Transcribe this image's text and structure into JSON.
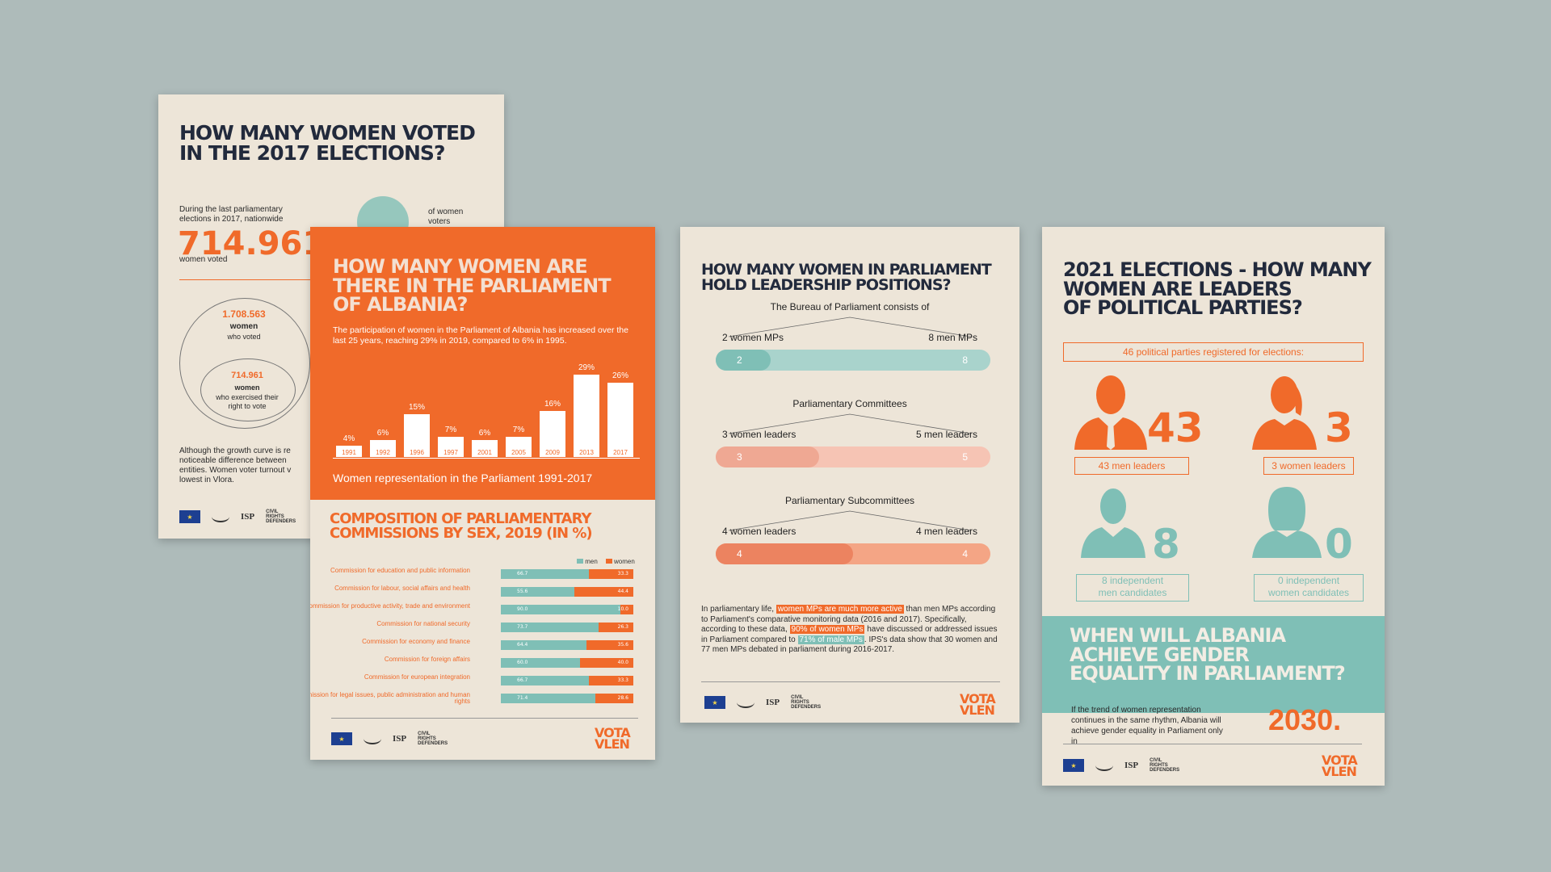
{
  "colors": {
    "background": "#aebbba",
    "paper": "#ede5d8",
    "orange": "#f06a2a",
    "teal": "#7fbfb6",
    "navy": "#222a3c"
  },
  "footer": {
    "logo_eu": "★",
    "logo_isp": "ISP",
    "logo_crd": "CIVIL RIGHTS DEFENDERS",
    "logo_vota_line1": "VOTA",
    "logo_vota_line2": "VLEN"
  },
  "poster1": {
    "title_line1": "HOW MANY WOMEN VOTED",
    "title_line2": "IN THE 2017 ELECTIONS?",
    "intro": "During the last parliamentary elections in 2017, nationwide",
    "big_number": "714.961",
    "big_number_caption": "women voted",
    "circle_caption": "of women voters",
    "outer_number": "1.708.563",
    "outer_label": "women",
    "outer_sub": "who voted",
    "inner_number": "714.961",
    "inner_label": "women",
    "inner_sub": "who exercised their right to vote",
    "body_line1": "Although the growth curve is re",
    "body_line2": "noticeable difference between",
    "body_line3": "entities. Women voter turnout v",
    "body_line4": "lowest in Vlora."
  },
  "poster2": {
    "title_line1": "HOW MANY WOMEN ARE",
    "title_line2": "THERE IN THE PARLIAMENT",
    "title_line3": "OF ALBANIA?",
    "intro": "The participation of women in the Parliament of Albania has increased over the last 25 years, reaching 29% in 2019, compared to 6% in 1995.",
    "chart_caption": "Women representation in the Parliament 1991-2017",
    "section_title_line1": "COMPOSITION OF PARLIAMENTARY",
    "section_title_line2": "COMMISSIONS BY SEX, 2019 (IN %)",
    "legend_men": "men",
    "legend_women": "women"
  },
  "chart_data": [
    {
      "type": "bar",
      "caption": "Women representation in the Parliament 1991-2017",
      "categories": [
        "1991",
        "1992",
        "1996",
        "1997",
        "2001",
        "2005",
        "2009",
        "2013",
        "2017"
      ],
      "values": [
        4,
        6,
        15,
        7,
        6,
        7,
        16,
        29,
        26
      ],
      "value_labels": [
        "4%",
        "6%",
        "15%",
        "7%",
        "6%",
        "7%",
        "16%",
        "29%",
        "26%"
      ],
      "ylim": [
        0,
        30
      ]
    },
    {
      "type": "bar",
      "orientation": "horizontal-stacked",
      "title": "COMPOSITION OF PARLIAMENTARY COMMISSIONS BY SEX, 2019 (IN %)",
      "legend": [
        "men",
        "women"
      ],
      "categories": [
        "Commission for education and public information",
        "Commission for labour, social affairs and health",
        "Commission for productive activity, trade and environment",
        "Commission for national security",
        "Commission for economy and finance",
        "Commission for foreign affairs",
        "Commission for european integration",
        "Commission for legal issues, public administration and human rights"
      ],
      "series": [
        {
          "name": "men",
          "values": [
            66.7,
            55.6,
            90.0,
            73.7,
            64.4,
            60.0,
            66.7,
            71.4
          ]
        },
        {
          "name": "women",
          "values": [
            33.3,
            44.4,
            10.0,
            26.3,
            35.6,
            40.0,
            33.3,
            28.6
          ]
        }
      ],
      "value_labels_men": [
        "66.7",
        "55.6",
        "90.0",
        "73.7",
        "64.4",
        "60.0",
        "66.7",
        "71.4"
      ],
      "value_labels_women": [
        "33.3",
        "44.4",
        "10.0",
        "26.3",
        "35.6",
        "40.0",
        "33.3",
        "28.6"
      ]
    },
    {
      "type": "bar",
      "orientation": "horizontal-stacked",
      "categories": [
        "The Bureau of Parliament consists of",
        "Parliamentary Committees",
        "Parliamentary Subcommittees"
      ],
      "series": [
        {
          "name": "women",
          "values": [
            2,
            3,
            4
          ]
        },
        {
          "name": "men",
          "values": [
            8,
            5,
            4
          ]
        }
      ]
    },
    {
      "type": "table",
      "title": "2021 ELECTIONS - HOW MANY WOMEN ARE LEADERS OF POLITICAL PARTIES?",
      "categories": [
        "43 men leaders",
        "3 women leaders",
        "8 independent men candidates",
        "0 independent women candidates"
      ],
      "values": [
        43,
        3,
        8,
        0
      ]
    }
  ],
  "poster3": {
    "title_line1": "HOW MANY WOMEN IN PARLIAMENT",
    "title_line2": "HOLD LEADERSHIP POSITIONS?",
    "groups": [
      {
        "title": "The Bureau of Parliament consists of",
        "left": "2 women MPs",
        "right": "8 men MPs",
        "a": "2",
        "b": "8"
      },
      {
        "title": "Parliamentary Committees",
        "left": "3 women leaders",
        "right": "5 men leaders",
        "a": "3",
        "b": "5"
      },
      {
        "title": "Parliamentary Subcommittees",
        "left": "4 women leaders",
        "right": "4 men leaders",
        "a": "4",
        "b": "4"
      }
    ],
    "p_1": "In parliamentary life, ",
    "p_hl1": "women MPs are much more active",
    "p_2": " than men MPs according to Parliament's comparative monitoring data (2016 and 2017). Specifically, according to these data, ",
    "p_hl2": "90% of women MPs",
    "p_3": " have discussed or addressed issues in Parliament compared to ",
    "p_hl3": "71% of male MPs",
    "p_4": ". IPS's data show that 30 women and 77 men MPs debated in parliament during 2016-2017."
  },
  "poster4": {
    "title_line1": "2021 ELECTIONS - HOW MANY",
    "title_line2": "WOMEN ARE LEADERS",
    "title_line3": "OF POLITICAL PARTIES?",
    "registered": "46 political parties registered for elections:",
    "men_num": "43",
    "men_label": "43 men leaders",
    "women_num": "3",
    "women_label": "3 women leaders",
    "ind_men_num": "8",
    "ind_men_label_1": "8 independent",
    "ind_men_label_2": "men candidates",
    "ind_women_num": "0",
    "ind_women_label_1": "0 independent",
    "ind_women_label_2": "women candidates",
    "eq_title_line1": "WHEN WILL ALBANIA",
    "eq_title_line2": "ACHIEVE GENDER",
    "eq_title_line3": "EQUALITY IN PARLIAMENT?",
    "eq_text": "If the trend of women representation continues in the same rhythm, Albania will achieve gender equality in Parliament only in",
    "eq_year": "2030."
  }
}
